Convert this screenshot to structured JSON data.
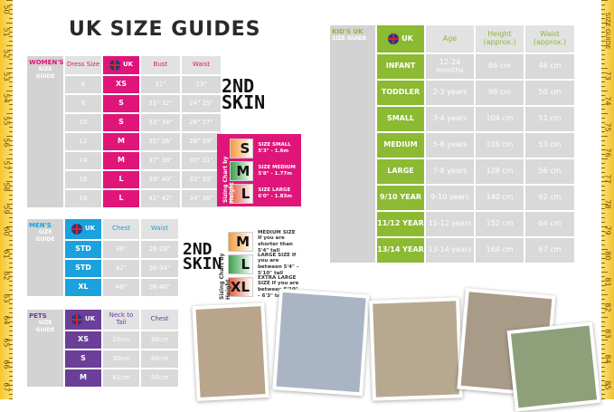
{
  "title": "UK SIZE GUIDES",
  "colors": {
    "women": "#e0157a",
    "men": "#1ba1dd",
    "pets": "#6b3f97",
    "kids": "#8cba32",
    "ruler": "#f7c62f"
  },
  "ruler_left": [
    "50",
    "51",
    "52",
    "53",
    "54",
    "55",
    "56",
    "57",
    "58",
    "59",
    "60",
    "61",
    "62",
    "63",
    "64",
    "65",
    "66",
    "67"
  ],
  "ruler_right": [
    "SIZE GUIDE",
    "73",
    "74",
    "75",
    "76",
    "77",
    "78",
    "79",
    "80",
    "81",
    "82",
    "83",
    "84",
    "85"
  ],
  "women": {
    "label1": "WOMEN'S",
    "label2": "SIZE GUIDE",
    "headers": [
      "Dress Size",
      "UK",
      "Bust",
      "Waist"
    ],
    "rows": [
      [
        "6",
        "XS",
        "31\"",
        "23\""
      ],
      [
        "8",
        "S",
        "31\" 32\"",
        "24\" 25\""
      ],
      [
        "10",
        "S",
        "33\" 34\"",
        "26\" 27\""
      ],
      [
        "12",
        "M",
        "35\" 36\"",
        "28\" 29\""
      ],
      [
        "14",
        "M",
        "37\" 38\"",
        "30\" 31\""
      ],
      [
        "16",
        "L",
        "39\" 40\"",
        "32\" 33\""
      ],
      [
        "18",
        "L",
        "41\" 42\"",
        "34\" 36\""
      ]
    ]
  },
  "men": {
    "label1": "MEN'S",
    "label2": "SIZE GUIDE",
    "headers": [
      "UK",
      "Chest",
      "Waist"
    ],
    "rows": [
      [
        "STD",
        "36\"",
        "26-28\""
      ],
      [
        "STD",
        "42\"",
        "30-34\""
      ],
      [
        "XL",
        "46\"",
        "36-40\""
      ]
    ]
  },
  "pets": {
    "label1": "PETS",
    "label2": "SIZE GUIDE",
    "headers": [
      "UK",
      "Neck to Tail",
      "Chest"
    ],
    "rows": [
      [
        "XS",
        "20cm",
        "36cm"
      ],
      [
        "S",
        "30cm",
        "46cm"
      ],
      [
        "M",
        "41cm",
        "50cm"
      ]
    ]
  },
  "kids": {
    "label1": "KID'S UK",
    "label2": "SIZE GUIDE",
    "headers": [
      "UK",
      "Age",
      "Height (approx.)",
      "Waist (approx.)"
    ],
    "rows": [
      [
        "INFANT",
        "12-24 months",
        "86 cm",
        "46 cm"
      ],
      [
        "TODDLER",
        "2-3 years",
        "98 cm",
        "50 cm"
      ],
      [
        "SMALL",
        "3-4 years",
        "104 cm",
        "51 cm"
      ],
      [
        "MEDIUM",
        "5-6 years",
        "116 cm",
        "53 cm"
      ],
      [
        "LARGE",
        "7-8 years",
        "128 cm",
        "56 cm"
      ],
      [
        "9/10 YEAR",
        "9-10 years",
        "140 cm",
        "62 cm"
      ],
      [
        "11/12 YEAR",
        "11-12 years",
        "152 cm",
        "64 cm"
      ],
      [
        "13/14 YEAR",
        "13-14 years",
        "164 cm",
        "67 cm"
      ]
    ]
  },
  "secondskin": {
    "logo": "2ND SKIN",
    "chart1_title": "Sizing Chart by Height",
    "chart1": [
      {
        "letter": "S",
        "text": "SIZE SMALL 5'3\" - 1.6m"
      },
      {
        "letter": "M",
        "text": "SIZE MEDIUM 5'8\" - 1.77m"
      },
      {
        "letter": "L",
        "text": "SIZE LARGE 6'0\" - 1.83m"
      }
    ],
    "chart2_title": "Sizing Chart by Height",
    "chart2": [
      {
        "letter": "M",
        "text": "MEDIUM SIZE If you are shorter than 5'4\" tall"
      },
      {
        "letter": "L",
        "text": "LARGE SIZE If you are between 5'4\" – 5'10\" tall"
      },
      {
        "letter": "XL",
        "text": "EXTRA LARGE SIZE If you are between 5'10\" – 6'3\" tall"
      }
    ]
  }
}
